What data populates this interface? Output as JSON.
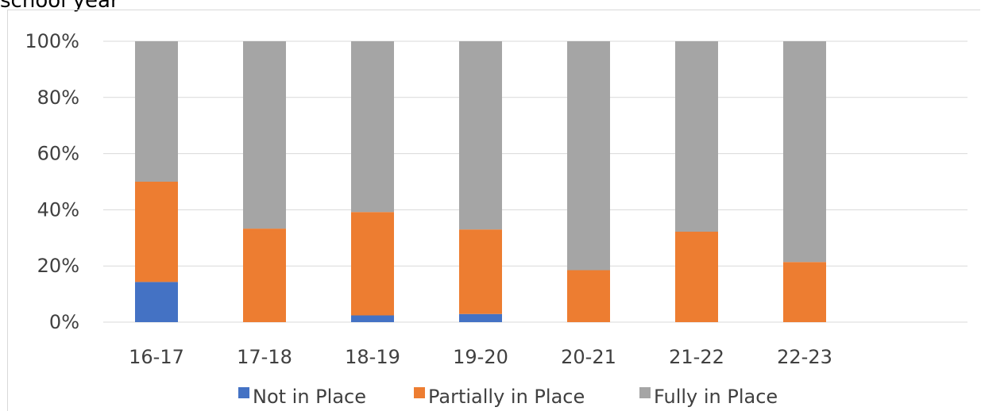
{
  "chart_data": {
    "type": "bar",
    "stacked": true,
    "title": "school year",
    "categories": [
      "16-17",
      "17-18",
      "18-19",
      "19-20",
      "20-21",
      "21-22",
      "22-23"
    ],
    "series": [
      {
        "name": "Not in Place",
        "color": "#4472c4",
        "values": [
          14.3,
          0,
          2.4,
          2.9,
          0,
          0,
          0
        ]
      },
      {
        "name": "Partially in Place",
        "color": "#ed7d31",
        "values": [
          35.7,
          33.3,
          36.8,
          30.1,
          18.5,
          32.2,
          21.4
        ]
      },
      {
        "name": "Fully in Place",
        "color": "#a5a5a5",
        "values": [
          50.0,
          66.7,
          60.8,
          67.0,
          81.5,
          67.8,
          78.6
        ]
      }
    ],
    "ylim": [
      0,
      100
    ],
    "yticks": [
      "0%",
      "20%",
      "40%",
      "60%",
      "80%",
      "100%"
    ],
    "grid": true,
    "legend_position": "bottom"
  }
}
